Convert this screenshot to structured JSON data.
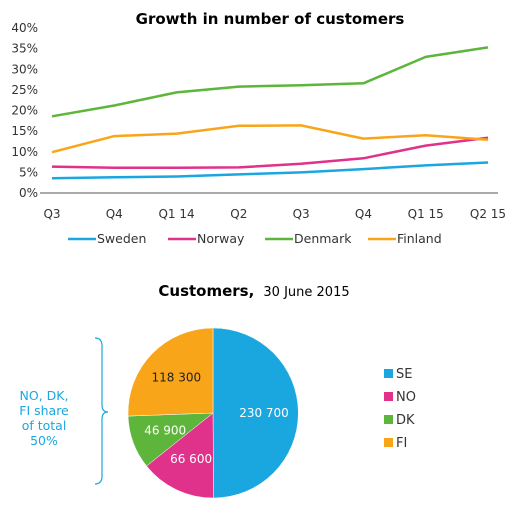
{
  "chart_data": [
    {
      "type": "line",
      "title": "Growth in number of customers",
      "categories": [
        "Q3",
        "Q4",
        "Q1 14",
        "Q2",
        "Q3",
        "Q4",
        "Q1 15",
        "Q2 15"
      ],
      "y_ticks": [
        "0%",
        "5%",
        "10%",
        "15%",
        "20%",
        "25%",
        "30%",
        "35%",
        "40%"
      ],
      "ylim": [
        0,
        40
      ],
      "unit": "%",
      "grid": false,
      "legend_position": "bottom",
      "series": [
        {
          "name": "Sweden",
          "color": "#1aa7e0",
          "values": [
            3.6,
            3.8,
            4.0,
            4.5,
            5.0,
            5.8,
            6.7,
            7.4
          ]
        },
        {
          "name": "Norway",
          "color": "#e0318b",
          "values": [
            6.4,
            6.1,
            6.1,
            6.2,
            7.1,
            8.4,
            11.5,
            13.4
          ]
        },
        {
          "name": "Denmark",
          "color": "#5db53b",
          "values": [
            18.6,
            21.2,
            24.4,
            25.8,
            26.1,
            26.6,
            33.0,
            35.3
          ]
        },
        {
          "name": "Finland",
          "color": "#f9a51a",
          "values": [
            9.9,
            13.8,
            14.4,
            16.3,
            16.4,
            13.2,
            14.0,
            12.9
          ]
        }
      ]
    },
    {
      "type": "pie",
      "title": "Customers,",
      "subtitle": "30 June 2015",
      "legend_position": "right",
      "slices": [
        {
          "label": "SE",
          "value": 230700,
          "display": "230 700",
          "color": "#1aa7e0"
        },
        {
          "label": "NO",
          "value": 66600,
          "display": "66 600",
          "color": "#e0318b"
        },
        {
          "label": "DK",
          "value": 46900,
          "display": "46 900",
          "color": "#5db53b"
        },
        {
          "label": "FI",
          "value": 118300,
          "display": "118 300",
          "color": "#f9a51a"
        }
      ],
      "annotation": {
        "lines": [
          "NO, DK,",
          "FI share",
          "of total",
          "50%"
        ],
        "color": "#1aa7e0"
      }
    }
  ]
}
